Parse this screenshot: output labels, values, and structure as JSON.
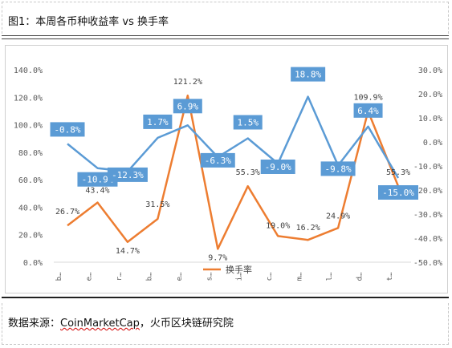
{
  "figure": {
    "title": "图1：本周各币种收益率 vs 换手率"
  },
  "source": {
    "prefix": "数据来源：",
    "brand": "CoinMarketCap",
    "suffix": "，火币区块链研究院"
  },
  "chart_data": {
    "type": "line",
    "categories": [
      "b…",
      "e…",
      "r…",
      "b…",
      "e…",
      "s…",
      "i…",
      "c…",
      "m…",
      "l…",
      "d…",
      "t…"
    ],
    "series": [
      {
        "name": "换手率",
        "axis": "left",
        "color": "#ED7D31",
        "values": [
          26.7,
          43.4,
          14.7,
          31.5,
          121.2,
          9.7,
          55.3,
          19.0,
          16.2,
          24.9,
          109.9,
          55.3
        ],
        "labels": [
          "26.7%",
          "43.4%",
          "14.7%",
          "31.5%",
          "121.2%",
          "9.7%",
          "55.3%",
          "19.0%",
          "16.2%",
          "24.9%",
          "109.9%",
          "55.3%"
        ]
      },
      {
        "name": "",
        "axis": "right",
        "color": "#5B9BD5",
        "values": [
          -0.8,
          -10.9,
          -12.3,
          1.7,
          6.9,
          -6.3,
          1.5,
          -9.0,
          18.8,
          -9.8,
          6.4,
          -15.0
        ],
        "labels": [
          "-0.8%",
          "-10.9%",
          "-12.3%",
          "1.7%",
          "6.9%",
          "-6.3%",
          "1.5%",
          "-9.0%",
          "18.8%",
          "-9.8%",
          "6.4%",
          "-15.0%"
        ]
      }
    ],
    "y_left": {
      "ylim": [
        0,
        140
      ],
      "ticks": [
        "0.0%",
        "20.0%",
        "40.0%",
        "60.0%",
        "80.0%",
        "100.0%",
        "120.0%",
        "140.0%"
      ]
    },
    "y_right": {
      "ylim": [
        -50,
        30
      ],
      "ticks": [
        "-50.0%",
        "-40.0%",
        "-30.0%",
        "-20.0%",
        "-10.0%",
        "0.0%",
        "10.0%",
        "20.0%",
        "30.0%"
      ]
    },
    "grid": false,
    "legend_position": "bottom",
    "legend": [
      "换手率"
    ]
  }
}
